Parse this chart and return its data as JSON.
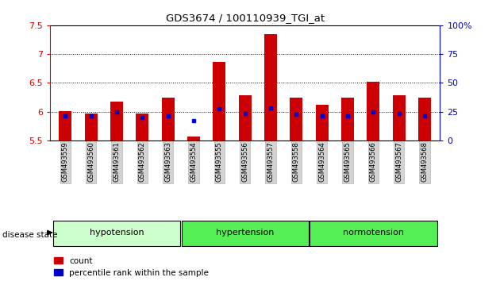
{
  "title": "GDS3674 / 100110939_TGI_at",
  "samples": [
    "GSM493559",
    "GSM493560",
    "GSM493561",
    "GSM493562",
    "GSM493563",
    "GSM493554",
    "GSM493555",
    "GSM493556",
    "GSM493557",
    "GSM493558",
    "GSM493564",
    "GSM493565",
    "GSM493566",
    "GSM493567",
    "GSM493568"
  ],
  "count_values": [
    6.01,
    5.97,
    6.17,
    5.97,
    6.25,
    5.57,
    6.87,
    6.28,
    7.34,
    6.25,
    6.12,
    6.25,
    6.52,
    6.28,
    6.25
  ],
  "percentile_values": [
    5.93,
    5.93,
    6.0,
    5.9,
    5.93,
    5.85,
    6.05,
    5.97,
    6.07,
    5.95,
    5.93,
    5.93,
    6.0,
    5.97,
    5.93
  ],
  "group_defs": [
    {
      "name": "hypotension",
      "start": 0,
      "end": 4,
      "color": "#ccffcc"
    },
    {
      "name": "hypertension",
      "start": 5,
      "end": 9,
      "color": "#55ee55"
    },
    {
      "name": "normotension",
      "start": 10,
      "end": 14,
      "color": "#55ee55"
    }
  ],
  "ymin": 5.5,
  "ymax": 7.5,
  "yticks": [
    5.5,
    6.0,
    6.5,
    7.0,
    7.5
  ],
  "ytick_labels": [
    "5.5",
    "6",
    "6.5",
    "7",
    "7.5"
  ],
  "right_yticks": [
    0,
    25,
    50,
    75,
    100
  ],
  "right_ytick_labels": [
    "0",
    "25",
    "50",
    "75",
    "100%"
  ],
  "bar_color": "#cc0000",
  "dot_color": "#0000cc",
  "bar_width": 0.5,
  "background_color": "#ffffff",
  "tick_color_left": "#cc0000",
  "tick_color_right": "#0000cc",
  "grid_lines": [
    6.0,
    6.5,
    7.0,
    7.5
  ]
}
